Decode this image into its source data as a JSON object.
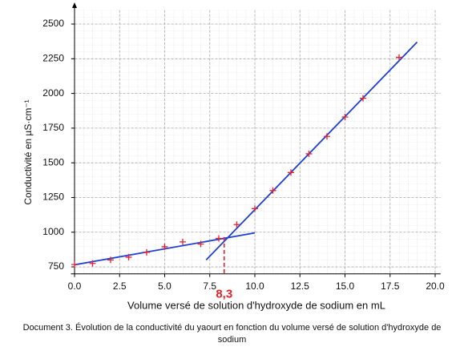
{
  "chart_data": {
    "type": "scatter",
    "xlabel": "Volume versé de solution d'hydroxyde de sodium en mL",
    "ylabel": "Conductivité en µS·cm⁻¹",
    "x": [
      0,
      1,
      2,
      3,
      4,
      5,
      6,
      7,
      8,
      9,
      10,
      11,
      12,
      13,
      14,
      15,
      16,
      18
    ],
    "values": [
      767,
      775,
      800,
      820,
      855,
      895,
      930,
      915,
      955,
      1055,
      1170,
      1300,
      1430,
      1565,
      1690,
      1830,
      1965,
      2260
    ],
    "color": "#e8202a",
    "lines": [
      {
        "x": [
          0,
          10
        ],
        "y": [
          765,
          995
        ],
        "color": "#1f3fd6"
      },
      {
        "x": [
          7.3,
          19
        ],
        "y": [
          800,
          2370
        ],
        "color": "#1f3fd6"
      }
    ],
    "annotation": {
      "x": 8.3,
      "y": 965,
      "text": "8,3",
      "color": "#e8202a"
    },
    "xlim": [
      -0.2,
      20.3
    ],
    "ylim": [
      700,
      2600
    ],
    "xticks": [
      {
        "value": 0,
        "label": "0.0"
      },
      {
        "value": 2.5,
        "label": "2.5"
      },
      {
        "value": 5,
        "label": "5.0"
      },
      {
        "value": 7.5,
        "label": "7.5"
      },
      {
        "value": 10,
        "label": "10.0"
      },
      {
        "value": 12.5,
        "label": "12.5"
      },
      {
        "value": 15,
        "label": "15.0"
      },
      {
        "value": 17.5,
        "label": "17.5"
      },
      {
        "value": 20,
        "label": "20.0"
      }
    ],
    "yticks": [
      750,
      1000,
      1250,
      1500,
      1750,
      2000,
      2250,
      2500
    ],
    "grid": true
  },
  "caption": "Document 3. Évolution de la conductivité du yaourt en fonction du volume versé de solution d'hydroxyde de sodium"
}
